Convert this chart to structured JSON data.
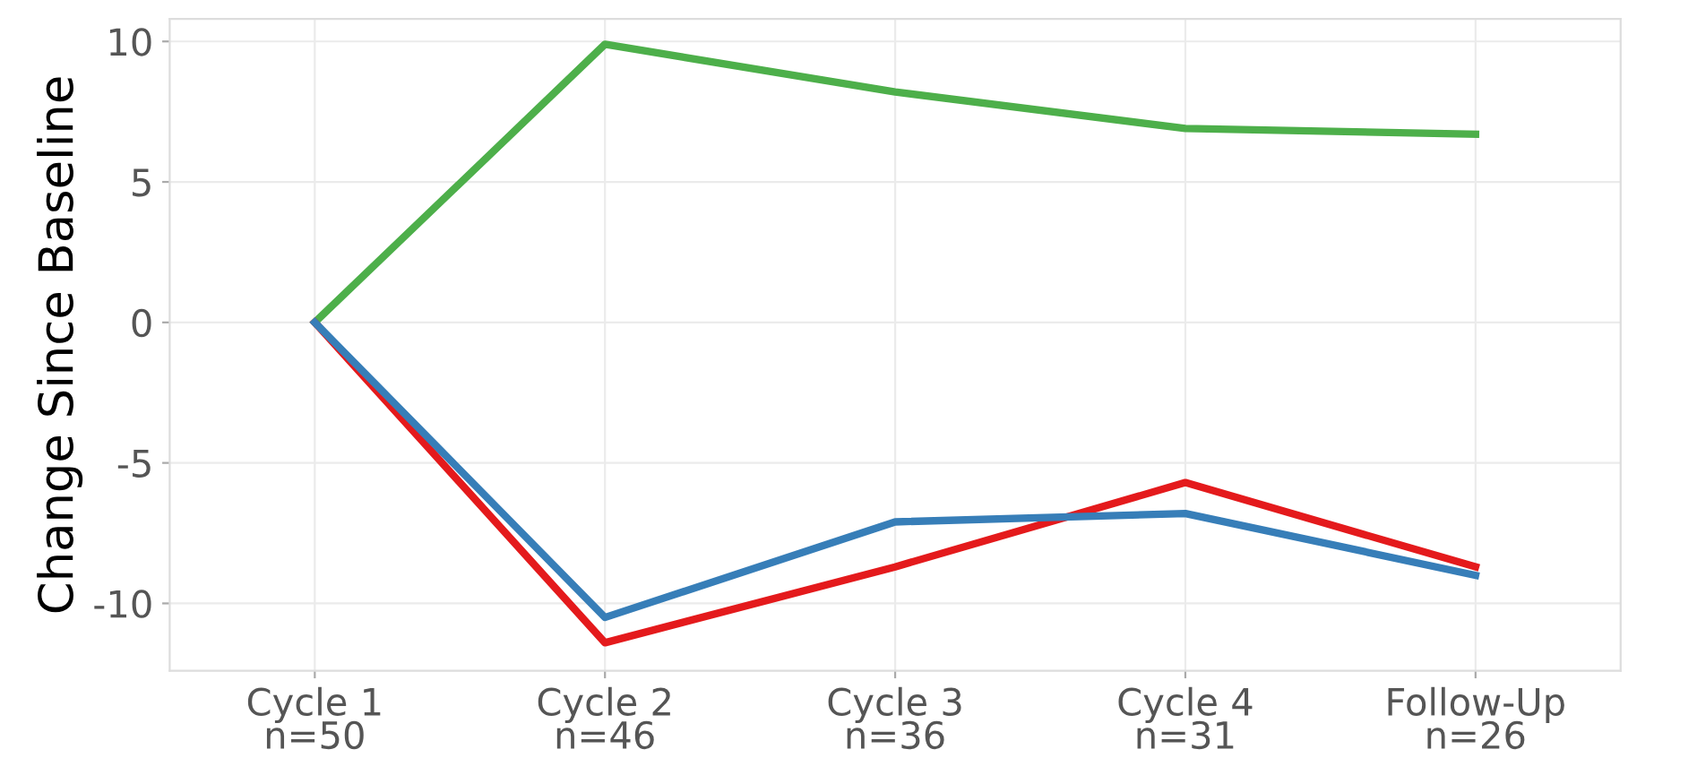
{
  "chart_data": {
    "type": "line",
    "ylabel": "Change Since Baseline",
    "categories": [
      "Cycle 1\nn=50",
      "Cycle 2\nn=46",
      "Cycle 3\nn=36",
      "Cycle 4\nn=31",
      "Follow-Up\nn=26"
    ],
    "series": [
      {
        "color": "#4daf4a",
        "values": [
          0,
          9.9,
          8.2,
          6.9,
          6.7
        ]
      },
      {
        "color": "#e41a1c",
        "values": [
          0,
          -11.4,
          -8.7,
          -5.7,
          -8.7
        ]
      },
      {
        "color": "#377eb8",
        "values": [
          0,
          -10.5,
          -7.1,
          -6.8,
          -9.0
        ]
      }
    ],
    "ylim": [
      -12.4,
      10.8
    ],
    "yticks": [
      {
        "value": -10,
        "label": "-10"
      },
      {
        "value": -5,
        "label": "-5"
      },
      0,
      5,
      10
    ],
    "grid": true,
    "marker": "none",
    "line_style": "solid"
  }
}
